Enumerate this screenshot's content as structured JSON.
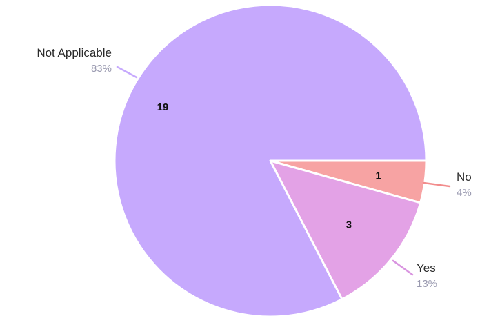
{
  "chart_data": {
    "type": "pie",
    "slices": [
      {
        "label": "No",
        "value": 1,
        "percent": "4%",
        "color": "#f7a3a3",
        "leader_color": "#f28c8c"
      },
      {
        "label": "Yes",
        "value": 3,
        "percent": "13%",
        "color": "#e3a2e6",
        "leader_color": "#d995e0"
      },
      {
        "label": "Not Applicable",
        "value": 19,
        "percent": "83%",
        "color": "#c6a9fd",
        "leader_color": "#c6a9fd"
      }
    ],
    "start": "3 o'clock",
    "direction": "clockwise",
    "slice_border_color": "#ffffff"
  }
}
